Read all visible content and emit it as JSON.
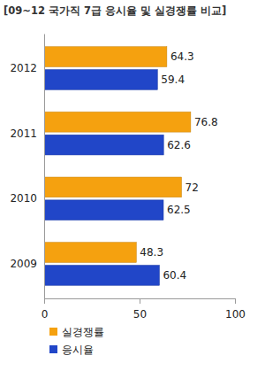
{
  "chart_data": {
    "type": "bar",
    "title": "[09~12 국가직 7급 응시율 및 실경쟁률 비교]",
    "orientation": "horizontal",
    "categories": [
      "2012",
      "2011",
      "2010",
      "2009"
    ],
    "series": [
      {
        "name": "실경쟁률",
        "color": "#f5a10f",
        "values": [
          64.3,
          76.8,
          72,
          48.3
        ]
      },
      {
        "name": "응시율",
        "color": "#2146c8",
        "values": [
          59.4,
          62.6,
          62.5,
          60.4
        ]
      }
    ],
    "xlim": [
      0,
      100
    ],
    "xticks": [
      0,
      50,
      100
    ],
    "grid": false,
    "data_labels": true,
    "legend": "bottom"
  }
}
